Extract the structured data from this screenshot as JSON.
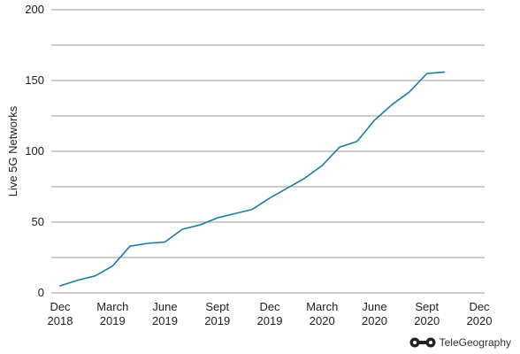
{
  "chart_data": {
    "type": "line",
    "title": "",
    "xlabel": "",
    "ylabel": "Live 5G Networks",
    "ylim": [
      0,
      200
    ],
    "yticks": [
      0,
      50,
      100,
      150,
      200
    ],
    "grid": true,
    "line_color": "#1a7aa8",
    "x_ticks": [
      {
        "line1": "Dec",
        "line2": "2018",
        "index": 0
      },
      {
        "line1": "March",
        "line2": "2019",
        "index": 3
      },
      {
        "line1": "June",
        "line2": "2019",
        "index": 6
      },
      {
        "line1": "Sept",
        "line2": "2019",
        "index": 9
      },
      {
        "line1": "Dec",
        "line2": "2019",
        "index": 12
      },
      {
        "line1": "March",
        "line2": "2020",
        "index": 15
      },
      {
        "line1": "June",
        "line2": "2020",
        "index": 18
      },
      {
        "line1": "Sept",
        "line2": "2020",
        "index": 21
      },
      {
        "line1": "Dec",
        "line2": "2020",
        "index": 24
      }
    ],
    "series": [
      {
        "values": [
          5,
          9,
          12,
          19,
          33,
          35,
          36,
          45,
          48,
          53,
          56,
          59,
          67,
          74,
          81,
          90,
          103,
          107,
          122,
          133,
          142,
          155,
          156
        ]
      }
    ]
  },
  "brand": {
    "name": "TeleGeography",
    "logo_icon": "telegeography-logo-icon"
  }
}
